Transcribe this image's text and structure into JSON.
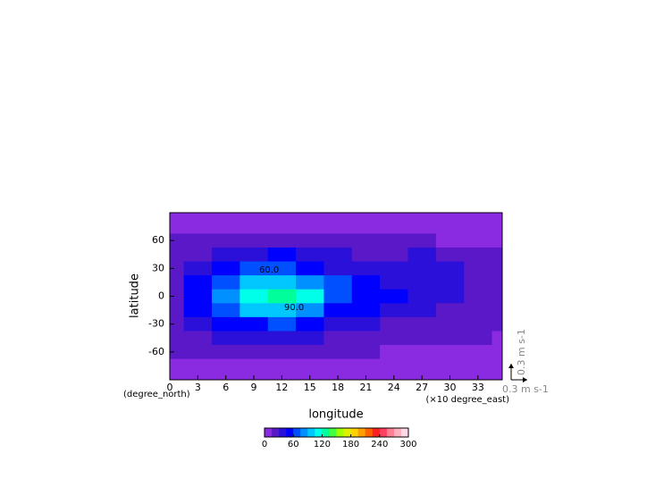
{
  "chart_data": {
    "type": "heatmap",
    "xlabel": "longitude",
    "ylabel": "latitude",
    "xunit": "(×10 degree_east)",
    "yunit": "(degree_north)",
    "xlim": [
      0,
      35.6
    ],
    "ylim": [
      -90,
      90
    ],
    "xticks": [
      0,
      3,
      6,
      9,
      12,
      15,
      18,
      21,
      24,
      27,
      30,
      33
    ],
    "yticks": [
      60,
      30,
      0,
      -30,
      -60
    ],
    "x": [
      0,
      3,
      6,
      9,
      12,
      15,
      18,
      21,
      24,
      27,
      30,
      33,
      36
    ],
    "y": [
      90,
      75,
      60,
      45,
      30,
      15,
      0,
      -15,
      -30,
      -45,
      -60,
      -75,
      -90
    ],
    "values": [
      [
        10,
        10,
        10,
        10,
        10,
        10,
        10,
        10,
        10,
        10,
        10,
        10,
        10
      ],
      [
        12,
        12,
        12,
        12,
        12,
        12,
        12,
        12,
        12,
        12,
        12,
        12,
        12
      ],
      [
        15,
        18,
        22,
        25,
        25,
        22,
        18,
        15,
        15,
        15,
        14,
        12,
        12
      ],
      [
        18,
        25,
        35,
        42,
        45,
        40,
        32,
        28,
        28,
        30,
        26,
        20,
        15
      ],
      [
        22,
        35,
        50,
        60,
        62,
        55,
        42,
        35,
        33,
        33,
        30,
        24,
        18
      ],
      [
        25,
        45,
        70,
        95,
        100,
        88,
        60,
        48,
        42,
        38,
        33,
        26,
        20
      ],
      [
        28,
        50,
        85,
        118,
        125,
        105,
        70,
        55,
        48,
        42,
        35,
        28,
        20
      ],
      [
        25,
        45,
        70,
        95,
        100,
        88,
        58,
        45,
        38,
        32,
        28,
        22,
        18
      ],
      [
        22,
        35,
        50,
        58,
        60,
        52,
        40,
        32,
        28,
        25,
        22,
        18,
        15
      ],
      [
        18,
        25,
        32,
        38,
        40,
        35,
        28,
        22,
        20,
        18,
        16,
        15,
        14
      ],
      [
        15,
        18,
        22,
        25,
        25,
        22,
        18,
        15,
        14,
        13,
        12,
        12,
        12
      ],
      [
        12,
        12,
        12,
        12,
        12,
        12,
        12,
        12,
        12,
        12,
        12,
        12,
        12
      ],
      [
        10,
        10,
        10,
        10,
        10,
        10,
        10,
        10,
        10,
        10,
        10,
        10,
        10
      ]
    ],
    "colorbar_lim": [
      0,
      300
    ],
    "colorbar_ticks": [
      0,
      60,
      120,
      180,
      240,
      300
    ],
    "colormap": [
      "#8a2be2",
      "#5a18c8",
      "#2a10d8",
      "#0000ff",
      "#0050ff",
      "#0090ff",
      "#00c8ff",
      "#00ffe8",
      "#00ff9a",
      "#40ff40",
      "#a0ff00",
      "#e0f000",
      "#ffd000",
      "#ffa000",
      "#ff6000",
      "#ff2020",
      "#ff4060",
      "#ff8090",
      "#ffb0c0",
      "#ffd8e8"
    ],
    "annotations": [
      "90.0",
      "60.0"
    ],
    "vector_reference": "0.3 m s-1"
  }
}
